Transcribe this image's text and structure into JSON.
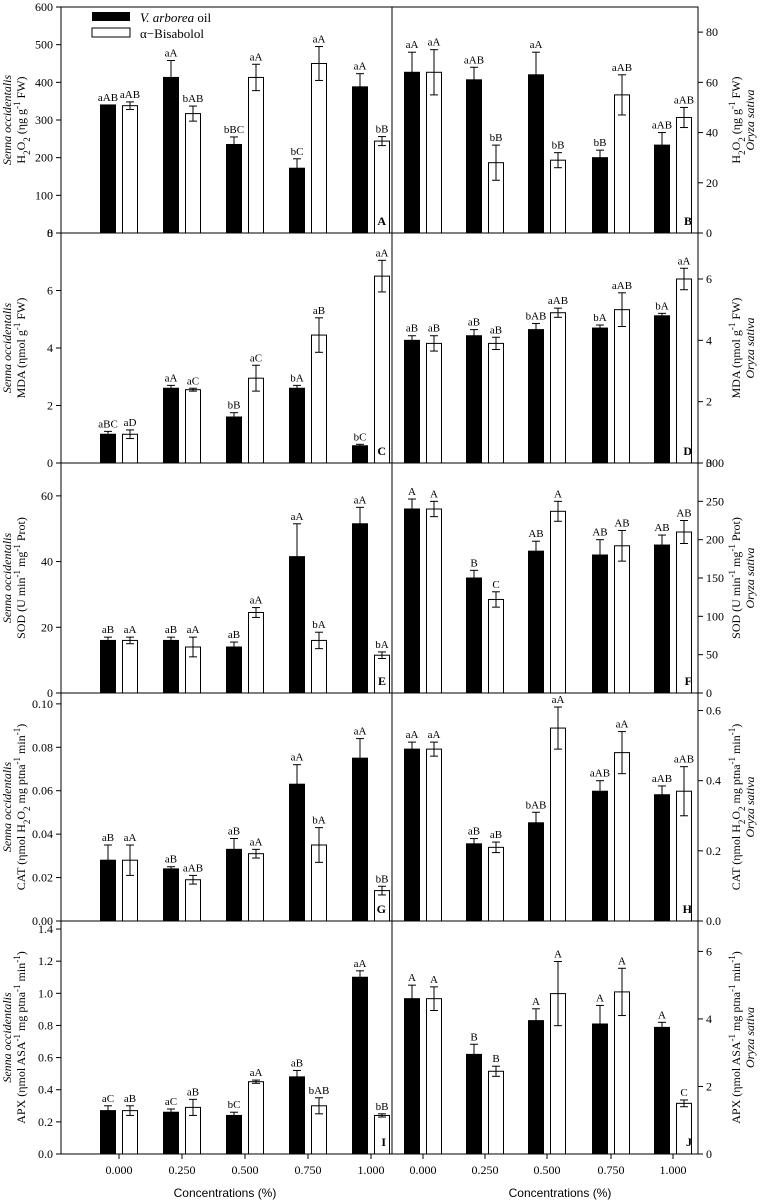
{
  "legend": {
    "oil_genus": "V. arborea",
    "oil_suffix": " oil",
    "bisabolol": "α−Bisabolol"
  },
  "x_axis_label": "Concentrations (%)",
  "x_categories": [
    "0.000",
    "0.250",
    "0.500",
    "0.750",
    "1.000"
  ],
  "colors": {
    "oil": "#000000",
    "bisabolol": "#ffffff"
  },
  "chart_data": [
    {
      "panel": "A",
      "type": "bar",
      "side": "left",
      "species": "Senna occidentalis",
      "ylabel": "H2O2 (ηg g-1 FW)",
      "ylim": [
        0,
        600
      ],
      "yticks": [
        0,
        100,
        200,
        300,
        400,
        500,
        600
      ],
      "categories": [
        "0.000",
        "0.250",
        "0.500",
        "0.750",
        "1.000"
      ],
      "series": [
        {
          "name": "V. arborea oil",
          "values": [
            340,
            413,
            235,
            172,
            388
          ],
          "err": [
            0,
            45,
            20,
            25,
            35
          ],
          "labels": [
            "aAB",
            "aA",
            "bBC",
            "bC",
            "aA"
          ]
        },
        {
          "name": "α−Bisabolol",
          "values": [
            338,
            317,
            413,
            450,
            244
          ],
          "err": [
            10,
            20,
            35,
            45,
            12
          ],
          "labels": [
            "aAB",
            "bAB",
            "aA",
            "aA",
            "bB"
          ]
        }
      ]
    },
    {
      "panel": "B",
      "type": "bar",
      "side": "right",
      "species": "Oryza sativa",
      "ylabel": "H2O2 (ηg g-1 FW)",
      "ylim": [
        0,
        90
      ],
      "yticks": [
        0,
        20,
        40,
        60,
        80
      ],
      "categories": [
        "0.000",
        "0.250",
        "0.500",
        "0.750",
        "1.000"
      ],
      "series": [
        {
          "name": "V. arborea oil",
          "values": [
            64,
            61,
            63,
            30,
            35
          ],
          "err": [
            8,
            5,
            9,
            3,
            5
          ],
          "labels": [
            "aA",
            "aAB",
            "aA",
            "bB",
            "aAB"
          ]
        },
        {
          "name": "α−Bisabolol",
          "values": [
            64,
            28,
            29,
            55,
            46
          ],
          "err": [
            9,
            7,
            3,
            8,
            4
          ],
          "labels": [
            "aA",
            "bB",
            "bB",
            "aAB",
            "aAB"
          ]
        }
      ]
    },
    {
      "panel": "C",
      "type": "bar",
      "side": "left",
      "species": "Senna occidentalis",
      "ylabel": "MDA (ηmol g-1 FW)",
      "ylim": [
        0,
        8
      ],
      "yticks": [
        0,
        2,
        4,
        6,
        8
      ],
      "categories": [
        "0.000",
        "0.250",
        "0.500",
        "0.750",
        "1.000"
      ],
      "series": [
        {
          "name": "V. arborea oil",
          "values": [
            1.0,
            2.6,
            1.6,
            2.6,
            0.6
          ],
          "err": [
            0.1,
            0.1,
            0.15,
            0.1,
            0.05
          ],
          "labels": [
            "aBC",
            "aA",
            "bB",
            "bA",
            "bC"
          ]
        },
        {
          "name": "α−Bisabolol",
          "values": [
            1.0,
            2.55,
            2.95,
            4.45,
            6.5
          ],
          "err": [
            0.15,
            0.05,
            0.45,
            0.6,
            0.55
          ],
          "labels": [
            "aD",
            "aC",
            "aC",
            "aB",
            "aA"
          ]
        }
      ]
    },
    {
      "panel": "D",
      "type": "bar",
      "side": "right",
      "species": "Oryza sativa",
      "ylabel": "MDA (ηmol g-1 FW)",
      "ylim": [
        0,
        7.5
      ],
      "yticks": [
        0,
        2,
        4,
        6
      ],
      "categories": [
        "0.000",
        "0.250",
        "0.500",
        "0.750",
        "1.000"
      ],
      "series": [
        {
          "name": "V. arborea oil",
          "values": [
            4.0,
            4.15,
            4.35,
            4.4,
            4.8
          ],
          "err": [
            0.15,
            0.2,
            0.2,
            0.1,
            0.08
          ],
          "labels": [
            "aB",
            "aB",
            "bAB",
            "bA",
            "bA"
          ]
        },
        {
          "name": "α−Bisabolol",
          "values": [
            3.9,
            3.9,
            4.9,
            5.0,
            6.0
          ],
          "err": [
            0.25,
            0.2,
            0.15,
            0.55,
            0.35
          ],
          "labels": [
            "aB",
            "aB",
            "aAB",
            "aAB",
            "aA"
          ]
        }
      ]
    },
    {
      "panel": "E",
      "type": "bar",
      "side": "left",
      "species": "Senna occidentalis",
      "ylabel": "SOD (U min-1 mg-1 Prot)",
      "ylim": [
        0,
        70
      ],
      "yticks": [
        0,
        20,
        40,
        60
      ],
      "categories": [
        "0.000",
        "0.250",
        "0.500",
        "0.750",
        "1.000"
      ],
      "series": [
        {
          "name": "V. arborea oil",
          "values": [
            16,
            16,
            14,
            41.5,
            51.5
          ],
          "err": [
            1,
            1,
            1.5,
            10,
            5
          ],
          "labels": [
            "aB",
            "aB",
            "aB",
            "aA",
            "aA"
          ]
        },
        {
          "name": "α−Bisabolol",
          "values": [
            16,
            14,
            24.5,
            16,
            11.5
          ],
          "err": [
            1,
            3,
            1.5,
            2.5,
            1
          ],
          "labels": [
            "aA",
            "aA",
            "aA",
            "bA",
            "bA"
          ]
        }
      ]
    },
    {
      "panel": "F",
      "type": "bar",
      "side": "right",
      "species": "Oryza sativa",
      "ylabel": "SOD (U min-1 mg-1 Prot)",
      "ylim": [
        0,
        300
      ],
      "yticks": [
        0,
        50,
        100,
        150,
        200,
        250,
        300
      ],
      "categories": [
        "0.000",
        "0.250",
        "0.500",
        "0.750",
        "1.000"
      ],
      "series": [
        {
          "name": "V. arborea oil",
          "values": [
            240,
            150,
            185,
            180,
            193
          ],
          "err": [
            13,
            10,
            13,
            20,
            13
          ],
          "labels": [
            "A",
            "B",
            "AB",
            "AB",
            "AB"
          ]
        },
        {
          "name": "α−Bisabolol",
          "values": [
            240,
            122,
            237,
            192,
            210
          ],
          "err": [
            10,
            10,
            13,
            20,
            15
          ],
          "labels": [
            "A",
            "C",
            "A",
            "AB",
            "AB"
          ]
        }
      ]
    },
    {
      "panel": "G",
      "type": "bar",
      "side": "left",
      "species": "Senna occidentalis",
      "ylabel": "CAT (ηmol H2O2 mg ptna-1 min-1)",
      "ylim": [
        0,
        0.105
      ],
      "yticks": [
        0.0,
        0.02,
        0.04,
        0.06,
        0.08,
        0.1
      ],
      "categories": [
        "0.000",
        "0.250",
        "0.500",
        "0.750",
        "1.000"
      ],
      "series": [
        {
          "name": "V. arborea oil",
          "values": [
            0.028,
            0.024,
            0.033,
            0.063,
            0.075
          ],
          "err": [
            0.007,
            0.001,
            0.005,
            0.009,
            0.009
          ],
          "labels": [
            "aB",
            "aB",
            "aB",
            "aA",
            "aA"
          ]
        },
        {
          "name": "α−Bisabolol",
          "values": [
            0.028,
            0.019,
            0.031,
            0.035,
            0.014
          ],
          "err": [
            0.007,
            0.002,
            0.002,
            0.008,
            0.002
          ],
          "labels": [
            "aA",
            "aAB",
            "aA",
            "bA",
            "bB"
          ]
        }
      ]
    },
    {
      "panel": "H",
      "type": "bar",
      "side": "right",
      "species": "Oryza sativa",
      "ylabel": "CAT (ηmol H2O2 mg ptna-1 min-1)",
      "ylim": [
        0,
        0.65
      ],
      "yticks": [
        0.0,
        0.2,
        0.4,
        0.6
      ],
      "categories": [
        "0.000",
        "0.250",
        "0.500",
        "0.750",
        "1.000"
      ],
      "series": [
        {
          "name": "V. arborea oil",
          "values": [
            0.49,
            0.22,
            0.28,
            0.37,
            0.36
          ],
          "err": [
            0.02,
            0.015,
            0.03,
            0.03,
            0.025
          ],
          "labels": [
            "aA",
            "aB",
            "bAB",
            "aAB",
            "aAB"
          ]
        },
        {
          "name": "α−Bisabolol",
          "values": [
            0.49,
            0.21,
            0.55,
            0.48,
            0.37
          ],
          "err": [
            0.02,
            0.015,
            0.06,
            0.06,
            0.07
          ],
          "labels": [
            "aA",
            "aB",
            "aA",
            "aA",
            "aAB"
          ]
        }
      ]
    },
    {
      "panel": "I",
      "type": "bar",
      "side": "left",
      "species": "Senna occidentalis",
      "ylabel": "APX (ηmol ASA-1 mg ptna-1 min-1)",
      "ylim": [
        0,
        1.45
      ],
      "yticks": [
        0.0,
        0.2,
        0.4,
        0.6,
        0.8,
        1.0,
        1.2,
        1.4
      ],
      "categories": [
        "0.000",
        "0.250",
        "0.500",
        "0.750",
        "1.000"
      ],
      "series": [
        {
          "name": "V. arborea oil",
          "values": [
            0.27,
            0.26,
            0.24,
            0.48,
            1.1
          ],
          "err": [
            0.03,
            0.02,
            0.02,
            0.04,
            0.04
          ],
          "labels": [
            "aC",
            "aC",
            "bC",
            "aB",
            "aA"
          ]
        },
        {
          "name": "α−Bisabolol",
          "values": [
            0.27,
            0.29,
            0.45,
            0.3,
            0.24
          ],
          "err": [
            0.03,
            0.05,
            0.01,
            0.05,
            0.01
          ],
          "labels": [
            "aB",
            "aB",
            "aA",
            "bAB",
            "bB"
          ]
        }
      ]
    },
    {
      "panel": "J",
      "type": "bar",
      "side": "right",
      "species": "Oryza sativa",
      "ylabel": "APX (ηmol ASA-1 mg ptna-1 min-1)",
      "ylim": [
        0,
        6.9
      ],
      "yticks": [
        0,
        2,
        4,
        6
      ],
      "categories": [
        "0.000",
        "0.250",
        "0.500",
        "0.750",
        "1.000"
      ],
      "series": [
        {
          "name": "V. arborea oil",
          "values": [
            4.6,
            2.95,
            3.95,
            3.85,
            3.75
          ],
          "err": [
            0.4,
            0.3,
            0.35,
            0.55,
            0.15
          ],
          "labels": [
            "A",
            "B",
            "A",
            "A",
            "A"
          ]
        },
        {
          "name": "α−Bisabolol",
          "values": [
            4.6,
            2.45,
            4.75,
            4.8,
            1.5
          ],
          "err": [
            0.35,
            0.15,
            0.95,
            0.7,
            0.1
          ],
          "labels": [
            "A",
            "B",
            "A",
            "A",
            "C"
          ]
        }
      ]
    }
  ]
}
